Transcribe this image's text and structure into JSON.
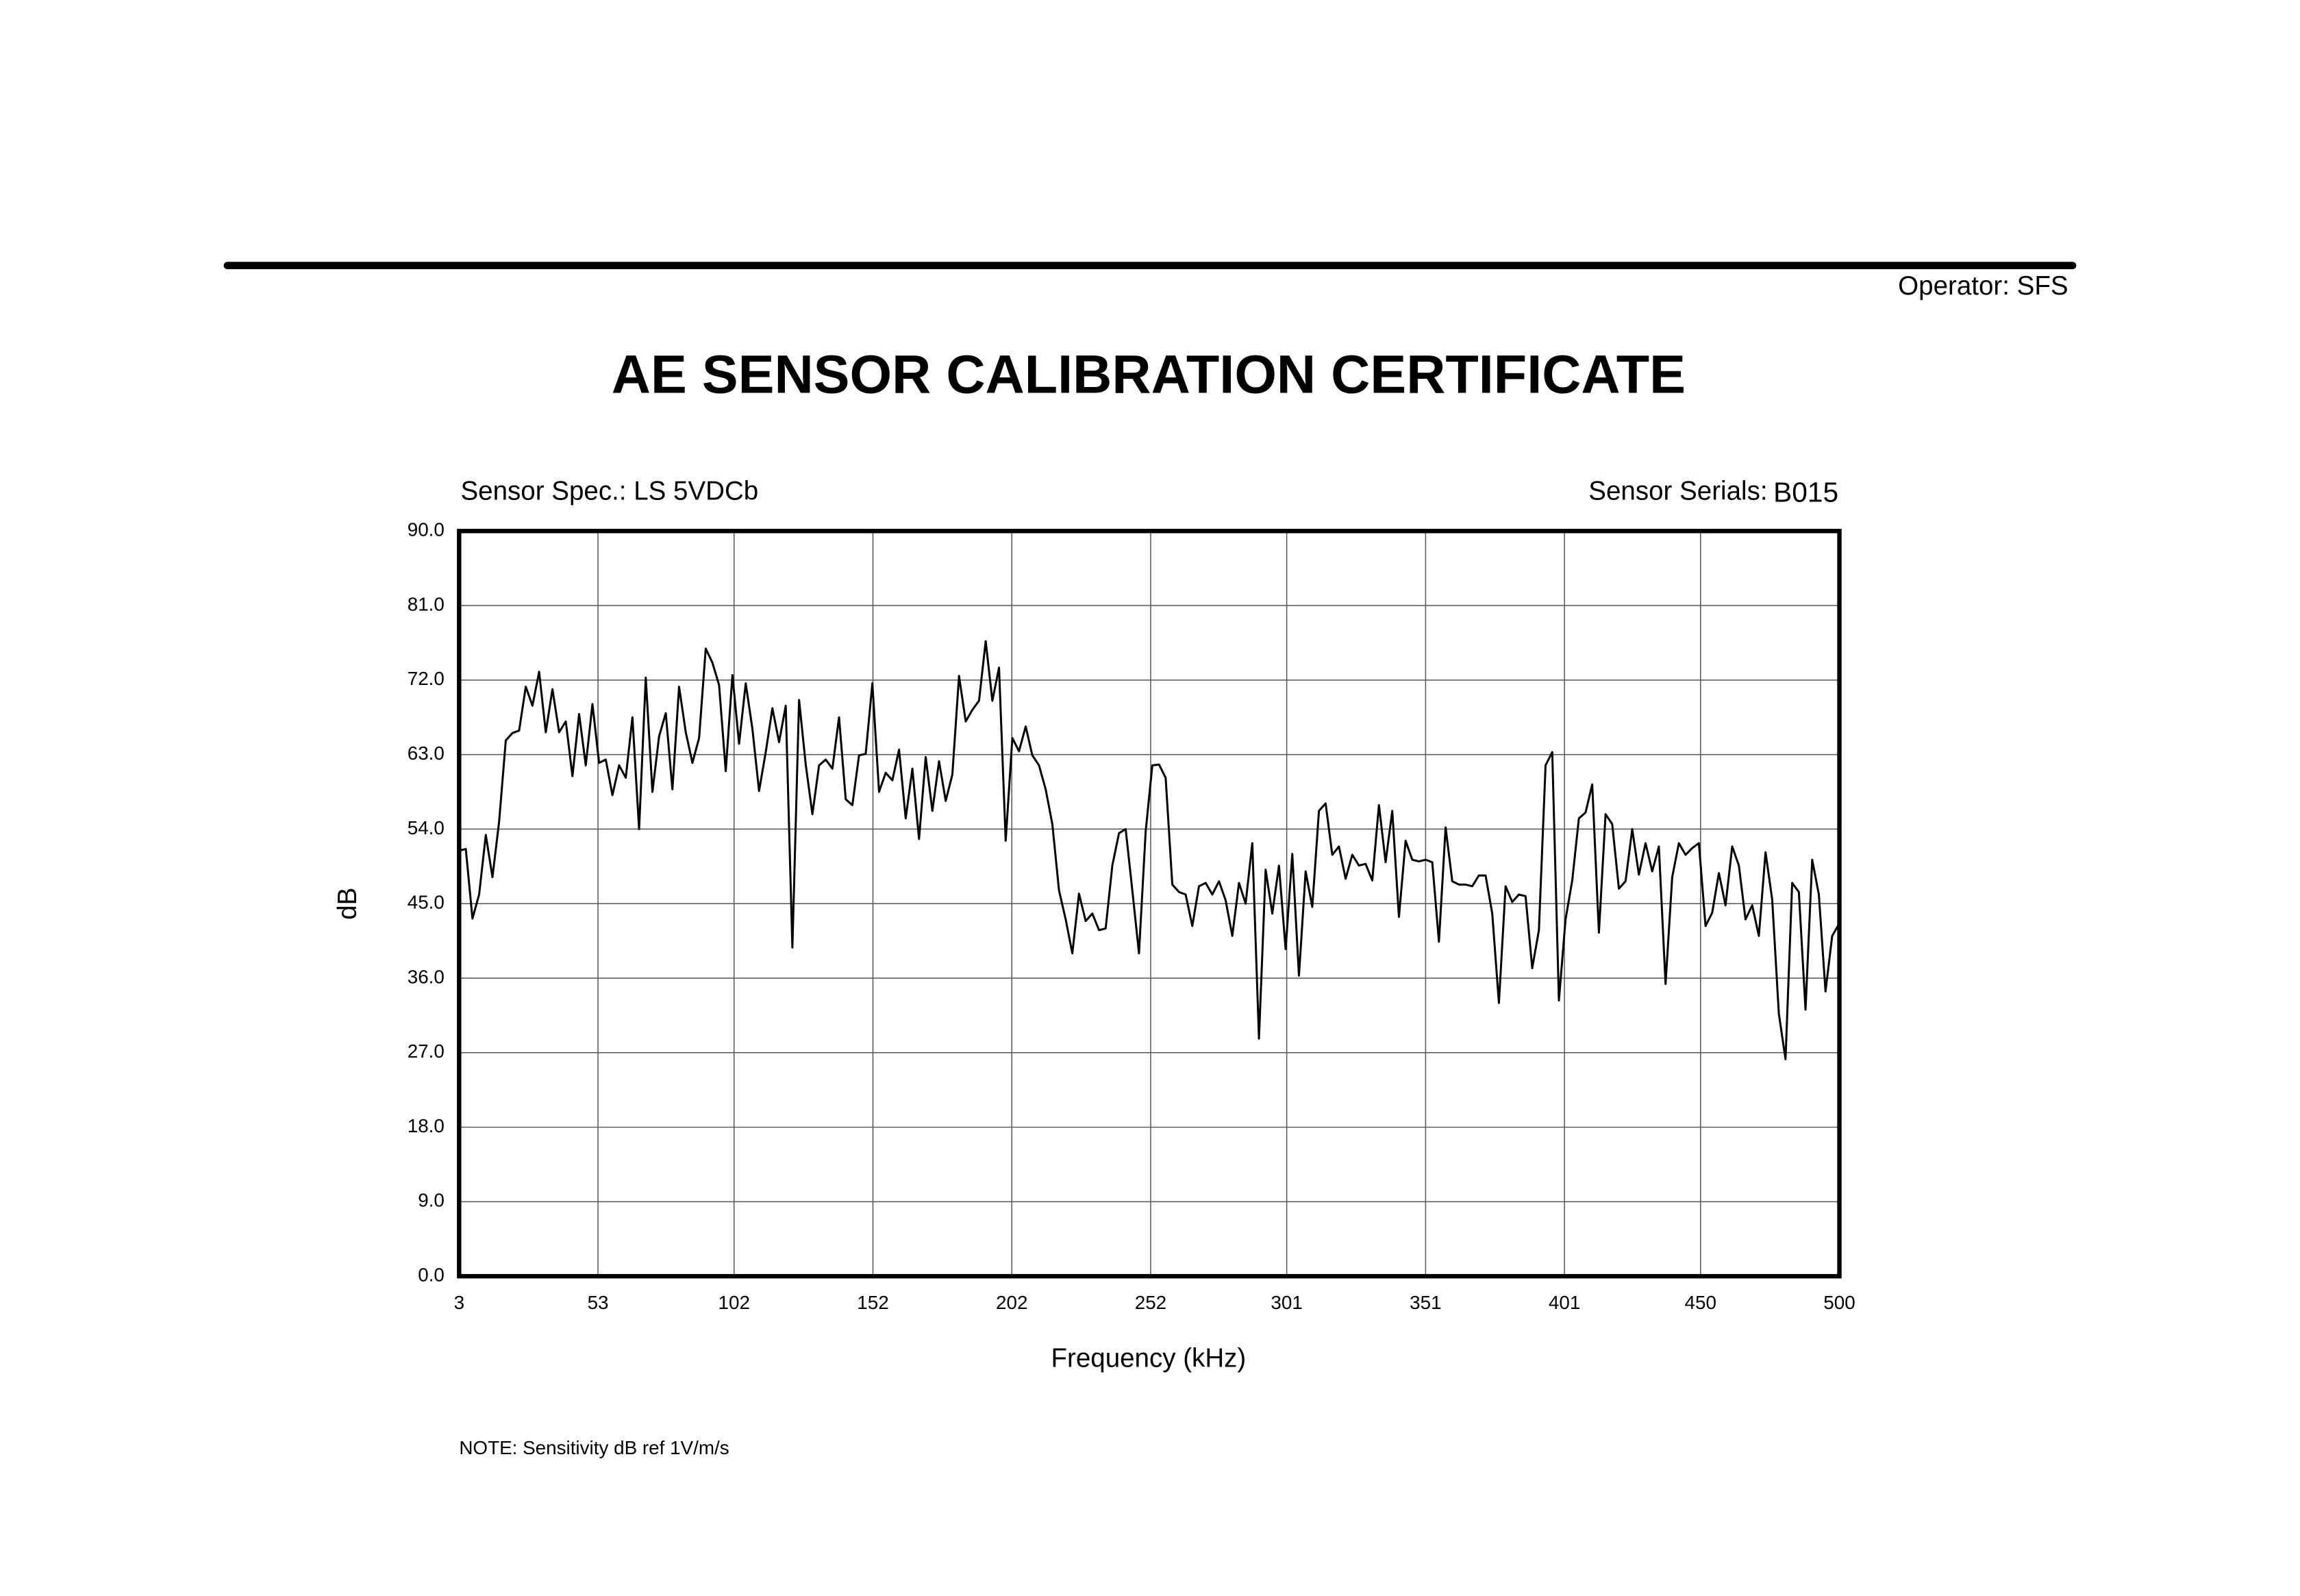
{
  "header": {
    "operator": "Operator: SFS"
  },
  "chart_data": {
    "type": "line",
    "title": "AE SENSOR CALIBRATION CERTIFICATE",
    "sensor_spec": "Sensor Spec.: LS  5VDCb",
    "sensor_serials_label": "Sensor Serials:",
    "sensor_serials": "B015",
    "xlabel": "Frequency (kHz)",
    "ylabel": "dB",
    "note": "NOTE:  Sensitivity dB ref 1V/m/s",
    "grid": true,
    "xlim": [
      3,
      500
    ],
    "xticks": [
      3,
      53,
      102,
      152,
      202,
      252,
      301,
      351,
      401,
      450,
      500
    ],
    "ylim": [
      0,
      90
    ],
    "yticks": [
      {
        "value": 0,
        "label": "0.0"
      },
      {
        "value": 9,
        "label": "9.0"
      },
      {
        "value": 18,
        "label": "18.0"
      },
      {
        "value": 27,
        "label": "27.0"
      },
      {
        "value": 36,
        "label": "36.0"
      },
      {
        "value": 45,
        "label": "45.0"
      },
      {
        "value": 54,
        "label": "54.0"
      },
      {
        "value": 63,
        "label": "63.0"
      },
      {
        "value": 72,
        "label": "72.0"
      },
      {
        "value": 81,
        "label": "81.0"
      },
      {
        "value": 90,
        "label": "90.0"
      }
    ],
    "color": "#000000",
    "x": [
      3,
      5.4,
      7.8,
      10.2,
      12.6,
      15,
      17.4,
      19.8,
      22.2,
      24.6,
      27,
      29.4,
      31.8,
      34.2,
      36.6,
      39,
      41.4,
      43.8,
      46.2,
      48.6,
      51,
      53.4,
      55.8,
      58.2,
      60.6,
      63,
      65.4,
      67.8,
      70.2,
      72.6,
      75,
      77.4,
      79.8,
      82.2,
      84.6,
      87,
      89.4,
      91.8,
      94.2,
      96.6,
      99,
      101.4,
      103.8,
      106.2,
      108.6,
      111,
      113.4,
      115.8,
      118.2,
      120.6,
      123,
      125.4,
      127.8,
      130.2,
      132.6,
      135,
      137.4,
      139.8,
      142.2,
      144.6,
      147,
      149.4,
      151.8,
      154.2,
      156.6,
      159,
      161.4,
      163.8,
      166.2,
      168.6,
      171,
      173.4,
      175.8,
      178.2,
      180.6,
      183,
      185.4,
      187.8,
      190.2,
      192.6,
      195,
      197.4,
      199.8,
      202.2,
      204.6,
      207,
      209.4,
      211.8,
      214.2,
      216.6,
      219,
      221.4,
      223.8,
      226.2,
      228.6,
      231,
      233.4,
      235.8,
      238.2,
      240.6,
      243,
      245.4,
      247.8,
      250.2,
      252.6,
      255,
      257.4,
      259.8,
      262.2,
      264.6,
      267,
      269.4,
      271.8,
      274.2,
      276.6,
      279,
      281.4,
      283.8,
      286.2,
      288.6,
      291,
      293.4,
      295.8,
      298.2,
      300.6,
      303,
      305.4,
      307.8,
      310.2,
      312.6,
      315,
      317.4,
      319.8,
      322.2,
      324.6,
      327,
      329.4,
      331.8,
      334.2,
      336.6,
      339,
      341.4,
      343.8,
      346.2,
      348.6,
      351,
      353.4,
      355.8,
      358.2,
      360.6,
      363,
      365.4,
      367.8,
      370.2,
      372.6,
      375,
      377.4,
      379.8,
      382.2,
      384.6,
      387,
      389.4,
      391.8,
      394.2,
      396.6,
      399,
      401.4,
      403.8,
      406.2,
      408.6,
      411,
      413.4,
      415.8,
      418.2,
      420.6,
      423,
      425.4,
      427.8,
      430.2,
      432.6,
      435,
      437.4,
      439.8,
      442.2,
      444.6,
      447,
      449.4,
      451.8,
      454.2,
      456.6,
      459,
      461.4,
      463.8,
      466.2,
      468.6,
      471,
      473.4,
      475.8,
      478.2,
      480.6,
      483,
      485.4,
      487.8,
      490.2,
      492.6,
      495,
      497.4,
      499.8
    ],
    "values": [
      51.4,
      51.6,
      43.2,
      46.1,
      53.3,
      48.2,
      54.9,
      64.7,
      65.6,
      65.9,
      71.2,
      68.9,
      73.0,
      65.7,
      70.9,
      65.7,
      67.0,
      60.4,
      67.9,
      61.7,
      69.1,
      62.0,
      62.4,
      58.1,
      61.7,
      60.2,
      67.5,
      54.0,
      72.3,
      58.5,
      65.2,
      68.0,
      58.8,
      71.2,
      65.7,
      62.0,
      65.0,
      75.8,
      74.1,
      71.4,
      61.0,
      72.6,
      64.3,
      71.6,
      66.1,
      58.6,
      63.3,
      68.6,
      64.5,
      68.9,
      39.7,
      69.6,
      61.8,
      55.8,
      61.7,
      62.4,
      61.3,
      67.5,
      57.6,
      56.9,
      62.9,
      63.1,
      71.6,
      58.5,
      60.8,
      59.9,
      63.6,
      55.3,
      61.3,
      52.8,
      62.7,
      56.2,
      62.2,
      57.4,
      60.6,
      72.5,
      67.0,
      68.4,
      69.5,
      76.7,
      69.5,
      73.5,
      52.6,
      65.0,
      63.4,
      66.4,
      62.9,
      61.7,
      58.8,
      54.6,
      46.6,
      43.1,
      39.0,
      46.2,
      42.9,
      43.8,
      41.8,
      42.0,
      49.6,
      53.5,
      54.0,
      46.6,
      39.0,
      53.7,
      61.7,
      61.8,
      60.2,
      47.3,
      46.4,
      46.1,
      42.3,
      47.1,
      47.5,
      46.1,
      47.7,
      45.4,
      41.1,
      47.5,
      45.0,
      52.3,
      28.7,
      49.1,
      43.8,
      49.6,
      39.5,
      51.0,
      36.3,
      48.9,
      44.6,
      56.2,
      57.1,
      50.9,
      51.9,
      48.0,
      50.9,
      49.6,
      49.8,
      47.8,
      56.9,
      50.0,
      56.2,
      43.4,
      52.6,
      50.3,
      50.1,
      50.3,
      50.0,
      40.4,
      54.2,
      47.7,
      47.3,
      47.3,
      47.1,
      48.4,
      48.4,
      43.8,
      33.0,
      47.1,
      45.2,
      46.1,
      45.9,
      37.2,
      41.8,
      61.7,
      63.3,
      33.3,
      43.1,
      47.8,
      55.3,
      56.0,
      59.4,
      41.5,
      55.8,
      54.6,
      46.8,
      47.7,
      54.0,
      48.5,
      52.3,
      48.9,
      51.9,
      35.3,
      48.2,
      52.3,
      50.9,
      51.7,
      52.3,
      42.3,
      43.9,
      48.7,
      44.8,
      51.9,
      49.6,
      43.1,
      44.8,
      41.1,
      51.2,
      45.5,
      31.7,
      26.2,
      47.5,
      46.4,
      32.2,
      50.3,
      46.1,
      34.4,
      41.1,
      42.5
    ]
  }
}
